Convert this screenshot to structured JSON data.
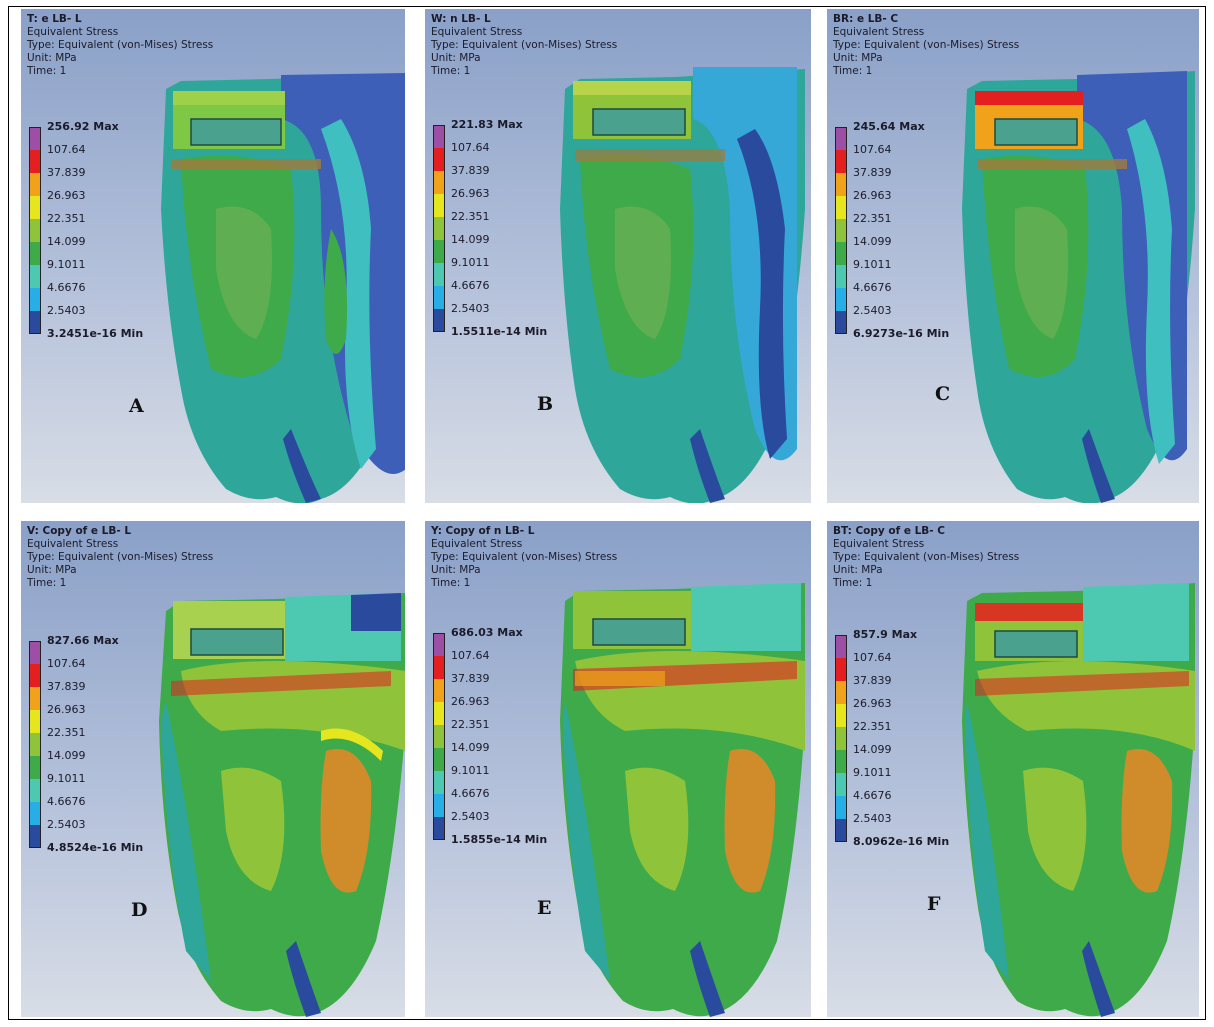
{
  "legend_colors": [
    "#9d4fa6",
    "#e41f1f",
    "#f0a31a",
    "#e6e61e",
    "#8fc43a",
    "#3faa4a",
    "#4cc9b0",
    "#27aee6",
    "#2a4a9e"
  ],
  "panels": [
    {
      "id": "A",
      "title": "T: e LB- L",
      "line2": "Equivalent Stress",
      "line3": "Type: Equivalent (von-Mises) Stress",
      "line4": "Unit: MPa",
      "line5": "Time: 1",
      "max": "256.92 Max",
      "levels": [
        "107.64",
        "37.839",
        "26.963",
        "22.351",
        "14.099",
        "9.1011",
        "4.6676",
        "2.5403"
      ],
      "min": "3.2451e-16 Min",
      "letter": "A"
    },
    {
      "id": "B",
      "title": "W: n LB- L",
      "line2": "Equivalent Stress",
      "line3": "Type: Equivalent (von-Mises) Stress",
      "line4": "Unit: MPa",
      "line5": "Time: 1",
      "max": "221.83 Max",
      "levels": [
        "107.64",
        "37.839",
        "26.963",
        "22.351",
        "14.099",
        "9.1011",
        "4.6676",
        "2.5403"
      ],
      "min": "1.5511e-14 Min",
      "letter": "B"
    },
    {
      "id": "C",
      "title": "BR: e LB- C",
      "line2": "Equivalent Stress",
      "line3": "Type: Equivalent (von-Mises) Stress",
      "line4": "Unit: MPa",
      "line5": "Time: 1",
      "max": "245.64 Max",
      "levels": [
        "107.64",
        "37.839",
        "26.963",
        "22.351",
        "14.099",
        "9.1011",
        "4.6676",
        "2.5403"
      ],
      "min": "6.9273e-16 Min",
      "letter": "C"
    },
    {
      "id": "D",
      "title": "V: Copy of e LB- L",
      "line2": "Equivalent Stress",
      "line3": "Type: Equivalent (von-Mises) Stress",
      "line4": "Unit: MPa",
      "line5": "Time: 1",
      "max": "827.66 Max",
      "levels": [
        "107.64",
        "37.839",
        "26.963",
        "22.351",
        "14.099",
        "9.1011",
        "4.6676",
        "2.5403"
      ],
      "min": "4.8524e-16 Min",
      "letter": "D"
    },
    {
      "id": "E",
      "title": "Y: Copy of n LB- L",
      "line2": "Equivalent Stress",
      "line3": "Type: Equivalent (von-Mises) Stress",
      "line4": "Unit: MPa",
      "line5": "Time: 1",
      "max": "686.03 Max",
      "levels": [
        "107.64",
        "37.839",
        "26.963",
        "22.351",
        "14.099",
        "9.1011",
        "4.6676",
        "2.5403"
      ],
      "min": "1.5855e-14 Min",
      "letter": "E"
    },
    {
      "id": "F",
      "title": "BT: Copy of e LB- C",
      "line2": "Equivalent Stress",
      "line3": "Type: Equivalent (von-Mises) Stress",
      "line4": "Unit: MPa",
      "line5": "Time: 1",
      "max": "857.9 Max",
      "levels": [
        "107.64",
        "37.839",
        "26.963",
        "22.351",
        "14.099",
        "9.1011",
        "4.6676",
        "2.5403"
      ],
      "min": "8.0962e-16 Min",
      "letter": "F"
    }
  ]
}
